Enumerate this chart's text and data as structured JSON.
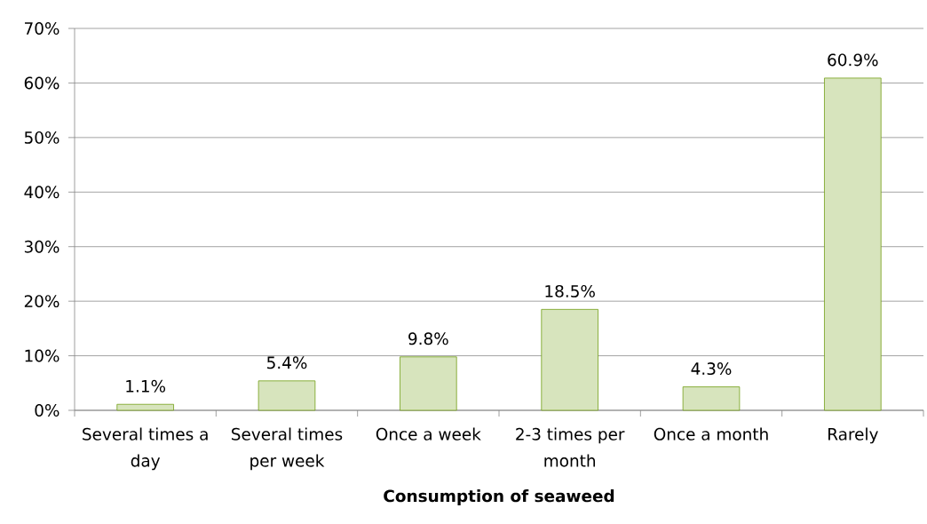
{
  "chart_data": {
    "type": "bar",
    "xlabel": "Consumption of seaweed",
    "categories": [
      "Several times a day",
      "Several times per week",
      "Once a week",
      "2-3 times per month",
      "Once a month",
      "Rarely"
    ],
    "values": [
      1.1,
      5.4,
      9.8,
      18.5,
      4.3,
      60.9
    ],
    "value_labels": [
      "1.1%",
      "5.4%",
      "9.8%",
      "18.5%",
      "4.3%",
      "60.9%"
    ],
    "color": "#d7e4bd",
    "ylim": [
      0,
      70
    ],
    "yticks": [
      {
        "value": 0,
        "label": "0%"
      },
      {
        "value": 10,
        "label": "10%"
      },
      {
        "value": 20,
        "label": "20%"
      },
      {
        "value": 30,
        "label": "30%"
      },
      {
        "value": 40,
        "label": "40%"
      },
      {
        "value": 50,
        "label": "50%"
      },
      {
        "value": 60,
        "label": "60%"
      },
      {
        "value": 70,
        "label": "70%"
      }
    ],
    "grid": "y"
  }
}
